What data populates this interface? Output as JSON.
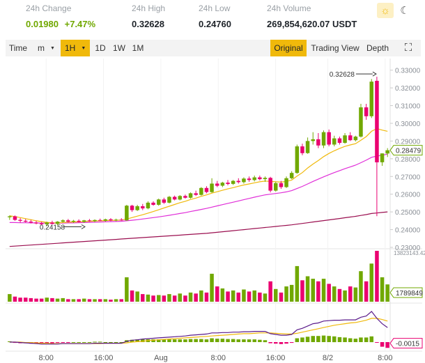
{
  "stats": {
    "change": {
      "label": "24h Change",
      "value": "0.01980",
      "percent": "+7.47%"
    },
    "high": {
      "label": "24h High",
      "value": "0.32628"
    },
    "low": {
      "label": "24h Low",
      "value": "0.24760"
    },
    "volume": {
      "label": "24h Volume",
      "value": "269,854,620.07 USDT"
    }
  },
  "theme_icons": [
    "sun-icon",
    "moon-icon"
  ],
  "toolbar": {
    "time": "Time",
    "minute": "m",
    "hour": "1H",
    "day": "1D",
    "week": "1W",
    "month": "1M",
    "original": "Original",
    "tradingview": "Trading View",
    "depth": "Depth",
    "fullscreen_icon": "fullscreen-icon"
  },
  "colors": {
    "up": "#70a800",
    "down": "#ea0070",
    "accent": "#f0b90b",
    "ma1": "#f0b90b",
    "ma2": "#e02ed8",
    "ma3": "#9a0e4f"
  },
  "chart_data": {
    "type": "candlestick",
    "x_ticks": [
      "8:00",
      "16:00",
      "Aug",
      "8:00",
      "16:00",
      "8/2",
      "8:00"
    ],
    "y_ticks": [
      "0.33000",
      "0.32000",
      "0.31000",
      "0.30000",
      "0.29000",
      "0.28000",
      "0.27000",
      "0.26000",
      "0.25000",
      "0.24000",
      "0.23000"
    ],
    "ylim": [
      0.23,
      0.335
    ],
    "candles": [
      {
        "o": 0.247,
        "h": 0.248,
        "l": 0.2455,
        "c": 0.2475
      },
      {
        "o": 0.2475,
        "h": 0.248,
        "l": 0.245,
        "c": 0.2455
      },
      {
        "o": 0.2455,
        "h": 0.2465,
        "l": 0.244,
        "c": 0.245
      },
      {
        "o": 0.245,
        "h": 0.246,
        "l": 0.244,
        "c": 0.2445
      },
      {
        "o": 0.2445,
        "h": 0.2455,
        "l": 0.2435,
        "c": 0.244
      },
      {
        "o": 0.244,
        "h": 0.245,
        "l": 0.243,
        "c": 0.2435
      },
      {
        "o": 0.2435,
        "h": 0.2445,
        "l": 0.2425,
        "c": 0.243
      },
      {
        "o": 0.243,
        "h": 0.2445,
        "l": 0.242,
        "c": 0.244
      },
      {
        "o": 0.244,
        "h": 0.245,
        "l": 0.243,
        "c": 0.2432
      },
      {
        "o": 0.2432,
        "h": 0.2448,
        "l": 0.2425,
        "c": 0.2445
      },
      {
        "o": 0.2445,
        "h": 0.2458,
        "l": 0.244,
        "c": 0.2452
      },
      {
        "o": 0.2452,
        "h": 0.246,
        "l": 0.244,
        "c": 0.2445
      },
      {
        "o": 0.2445,
        "h": 0.2455,
        "l": 0.2438,
        "c": 0.245
      },
      {
        "o": 0.245,
        "h": 0.2458,
        "l": 0.244,
        "c": 0.2444
      },
      {
        "o": 0.2444,
        "h": 0.2455,
        "l": 0.2438,
        "c": 0.2452
      },
      {
        "o": 0.2452,
        "h": 0.246,
        "l": 0.2445,
        "c": 0.2448
      },
      {
        "o": 0.2448,
        "h": 0.2458,
        "l": 0.2442,
        "c": 0.2454
      },
      {
        "o": 0.2454,
        "h": 0.2462,
        "l": 0.2448,
        "c": 0.245
      },
      {
        "o": 0.245,
        "h": 0.2462,
        "l": 0.2445,
        "c": 0.2458
      },
      {
        "o": 0.2458,
        "h": 0.2465,
        "l": 0.2448,
        "c": 0.2452
      },
      {
        "o": 0.2452,
        "h": 0.2462,
        "l": 0.2447,
        "c": 0.2456
      },
      {
        "o": 0.2456,
        "h": 0.2465,
        "l": 0.245,
        "c": 0.2452
      },
      {
        "o": 0.2452,
        "h": 0.254,
        "l": 0.245,
        "c": 0.2535
      },
      {
        "o": 0.2535,
        "h": 0.254,
        "l": 0.25,
        "c": 0.251
      },
      {
        "o": 0.251,
        "h": 0.254,
        "l": 0.2505,
        "c": 0.2532
      },
      {
        "o": 0.2532,
        "h": 0.2545,
        "l": 0.251,
        "c": 0.252
      },
      {
        "o": 0.252,
        "h": 0.256,
        "l": 0.2515,
        "c": 0.2552
      },
      {
        "o": 0.2552,
        "h": 0.256,
        "l": 0.2535,
        "c": 0.254
      },
      {
        "o": 0.254,
        "h": 0.2575,
        "l": 0.2535,
        "c": 0.257
      },
      {
        "o": 0.257,
        "h": 0.258,
        "l": 0.2545,
        "c": 0.2552
      },
      {
        "o": 0.2552,
        "h": 0.259,
        "l": 0.2548,
        "c": 0.2585
      },
      {
        "o": 0.2585,
        "h": 0.2592,
        "l": 0.2565,
        "c": 0.257
      },
      {
        "o": 0.257,
        "h": 0.2595,
        "l": 0.2565,
        "c": 0.259
      },
      {
        "o": 0.259,
        "h": 0.2598,
        "l": 0.2575,
        "c": 0.258
      },
      {
        "o": 0.258,
        "h": 0.261,
        "l": 0.2575,
        "c": 0.2605
      },
      {
        "o": 0.2605,
        "h": 0.262,
        "l": 0.259,
        "c": 0.2596
      },
      {
        "o": 0.2596,
        "h": 0.264,
        "l": 0.2592,
        "c": 0.2635
      },
      {
        "o": 0.2635,
        "h": 0.2645,
        "l": 0.2605,
        "c": 0.2612
      },
      {
        "o": 0.2612,
        "h": 0.269,
        "l": 0.2608,
        "c": 0.266
      },
      {
        "o": 0.266,
        "h": 0.2675,
        "l": 0.264,
        "c": 0.2648
      },
      {
        "o": 0.2648,
        "h": 0.267,
        "l": 0.264,
        "c": 0.2665
      },
      {
        "o": 0.2665,
        "h": 0.268,
        "l": 0.265,
        "c": 0.2658
      },
      {
        "o": 0.2658,
        "h": 0.268,
        "l": 0.2652,
        "c": 0.2675
      },
      {
        "o": 0.2675,
        "h": 0.269,
        "l": 0.266,
        "c": 0.2668
      },
      {
        "o": 0.2668,
        "h": 0.2695,
        "l": 0.266,
        "c": 0.2688
      },
      {
        "o": 0.2688,
        "h": 0.27,
        "l": 0.267,
        "c": 0.268
      },
      {
        "o": 0.268,
        "h": 0.2705,
        "l": 0.2672,
        "c": 0.2695
      },
      {
        "o": 0.2695,
        "h": 0.2705,
        "l": 0.2678,
        "c": 0.2685
      },
      {
        "o": 0.2685,
        "h": 0.27,
        "l": 0.267,
        "c": 0.2692
      },
      {
        "o": 0.2692,
        "h": 0.2698,
        "l": 0.261,
        "c": 0.262
      },
      {
        "o": 0.262,
        "h": 0.267,
        "l": 0.2615,
        "c": 0.2662
      },
      {
        "o": 0.2662,
        "h": 0.2675,
        "l": 0.263,
        "c": 0.264
      },
      {
        "o": 0.264,
        "h": 0.27,
        "l": 0.2635,
        "c": 0.269
      },
      {
        "o": 0.269,
        "h": 0.273,
        "l": 0.2685,
        "c": 0.272
      },
      {
        "o": 0.272,
        "h": 0.288,
        "l": 0.2715,
        "c": 0.287
      },
      {
        "o": 0.287,
        "h": 0.2885,
        "l": 0.282,
        "c": 0.2832
      },
      {
        "o": 0.2832,
        "h": 0.292,
        "l": 0.2828,
        "c": 0.29
      },
      {
        "o": 0.29,
        "h": 0.295,
        "l": 0.288,
        "c": 0.291
      },
      {
        "o": 0.291,
        "h": 0.2945,
        "l": 0.286,
        "c": 0.2875
      },
      {
        "o": 0.2875,
        "h": 0.296,
        "l": 0.286,
        "c": 0.295
      },
      {
        "o": 0.295,
        "h": 0.2965,
        "l": 0.287,
        "c": 0.288
      },
      {
        "o": 0.288,
        "h": 0.293,
        "l": 0.287,
        "c": 0.2915
      },
      {
        "o": 0.2915,
        "h": 0.2925,
        "l": 0.288,
        "c": 0.289
      },
      {
        "o": 0.289,
        "h": 0.2945,
        "l": 0.2885,
        "c": 0.2932
      },
      {
        "o": 0.2932,
        "h": 0.295,
        "l": 0.29,
        "c": 0.2905
      },
      {
        "o": 0.2905,
        "h": 0.293,
        "l": 0.2898,
        "c": 0.2925
      },
      {
        "o": 0.2925,
        "h": 0.311,
        "l": 0.292,
        "c": 0.309
      },
      {
        "o": 0.309,
        "h": 0.311,
        "l": 0.302,
        "c": 0.304
      },
      {
        "o": 0.304,
        "h": 0.325,
        "l": 0.303,
        "c": 0.3235
      },
      {
        "o": 0.324,
        "h": 0.3263,
        "l": 0.2476,
        "c": 0.278
      },
      {
        "o": 0.278,
        "h": 0.283,
        "l": 0.276,
        "c": 0.283
      },
      {
        "o": 0.283,
        "h": 0.286,
        "l": 0.281,
        "c": 0.2848
      }
    ],
    "ma_fast": [
      0.2478,
      0.2474,
      0.2468,
      0.2462,
      0.2456,
      0.245,
      0.2445,
      0.2441,
      0.2439,
      0.2438,
      0.244,
      0.2442,
      0.2443,
      0.2444,
      0.2446,
      0.2447,
      0.2449,
      0.245,
      0.2451,
      0.2452,
      0.2453,
      0.2454,
      0.246,
      0.2468,
      0.2476,
      0.2484,
      0.2493,
      0.2502,
      0.2512,
      0.2522,
      0.2532,
      0.2542,
      0.2552,
      0.256,
      0.257,
      0.2578,
      0.2588,
      0.2596,
      0.2606,
      0.2614,
      0.2622,
      0.263,
      0.2637,
      0.2645,
      0.2652,
      0.2658,
      0.2664,
      0.267,
      0.2674,
      0.2672,
      0.267,
      0.2668,
      0.2672,
      0.268,
      0.2702,
      0.2722,
      0.2748,
      0.277,
      0.279,
      0.2812,
      0.283,
      0.2845,
      0.2858,
      0.287,
      0.2878,
      0.2885,
      0.2905,
      0.2925,
      0.2955,
      0.297,
      0.2962,
      0.2955
    ],
    "ma_mid": [
      0.244,
      0.244,
      0.2439,
      0.2439,
      0.2438,
      0.2438,
      0.2437,
      0.2437,
      0.2437,
      0.2437,
      0.2437,
      0.2438,
      0.2438,
      0.2439,
      0.244,
      0.2441,
      0.2442,
      0.2443,
      0.2444,
      0.2445,
      0.2446,
      0.2447,
      0.245,
      0.2453,
      0.2456,
      0.246,
      0.2464,
      0.2468,
      0.2472,
      0.2476,
      0.2481,
      0.2486,
      0.2491,
      0.2496,
      0.2502,
      0.2508,
      0.2514,
      0.252,
      0.2527,
      0.2534,
      0.2541,
      0.2548,
      0.2555,
      0.2562,
      0.2569,
      0.2576,
      0.2583,
      0.259,
      0.2596,
      0.26,
      0.2604,
      0.2608,
      0.2613,
      0.262,
      0.2632,
      0.2644,
      0.2658,
      0.2672,
      0.2685,
      0.2698,
      0.271,
      0.2722,
      0.2733,
      0.2744,
      0.2754,
      0.2764,
      0.2778,
      0.2792,
      0.2808,
      0.2815,
      0.282,
      0.2826
    ],
    "ma_slow": [
      0.2305,
      0.2307,
      0.2309,
      0.2311,
      0.2313,
      0.2315,
      0.2317,
      0.2319,
      0.2321,
      0.2323,
      0.2325,
      0.2327,
      0.2329,
      0.2331,
      0.2333,
      0.2335,
      0.2337,
      0.2339,
      0.2341,
      0.2343,
      0.2345,
      0.2347,
      0.2349,
      0.2351,
      0.2353,
      0.2355,
      0.2357,
      0.2359,
      0.2361,
      0.2363,
      0.2365,
      0.2367,
      0.2369,
      0.2371,
      0.2373,
      0.2375,
      0.2377,
      0.2379,
      0.2382,
      0.2385,
      0.2388,
      0.2391,
      0.2394,
      0.2397,
      0.24,
      0.2403,
      0.2406,
      0.2409,
      0.2412,
      0.2415,
      0.2418,
      0.2421,
      0.2424,
      0.2427,
      0.2431,
      0.2435,
      0.2439,
      0.2443,
      0.2447,
      0.2451,
      0.2455,
      0.2459,
      0.2463,
      0.2467,
      0.2471,
      0.2475,
      0.248,
      0.2485,
      0.2491,
      0.2494,
      0.2497,
      0.25
    ],
    "volume": [
      0.15,
      0.1,
      0.08,
      0.08,
      0.07,
      0.06,
      0.06,
      0.08,
      0.07,
      0.06,
      0.07,
      0.05,
      0.05,
      0.05,
      0.06,
      0.05,
      0.05,
      0.05,
      0.05,
      0.04,
      0.05,
      0.05,
      0.48,
      0.22,
      0.2,
      0.15,
      0.14,
      0.12,
      0.13,
      0.12,
      0.15,
      0.12,
      0.16,
      0.12,
      0.18,
      0.16,
      0.22,
      0.18,
      0.55,
      0.3,
      0.26,
      0.2,
      0.22,
      0.18,
      0.24,
      0.2,
      0.22,
      0.18,
      0.16,
      0.4,
      0.25,
      0.18,
      0.3,
      0.33,
      0.7,
      0.42,
      0.5,
      0.45,
      0.4,
      0.45,
      0.35,
      0.3,
      0.25,
      0.22,
      0.3,
      0.28,
      0.6,
      0.4,
      0.75,
      1.0,
      0.48,
      0.34
    ],
    "macd_dif": [
      0.0,
      0.0,
      -0.01,
      -0.02,
      -0.03,
      -0.04,
      -0.05,
      -0.05,
      -0.05,
      -0.05,
      -0.04,
      -0.04,
      -0.04,
      -0.04,
      -0.04,
      -0.04,
      -0.03,
      -0.03,
      -0.03,
      -0.03,
      -0.03,
      -0.03,
      0.02,
      0.05,
      0.06,
      0.08,
      0.09,
      0.1,
      0.11,
      0.12,
      0.13,
      0.14,
      0.15,
      0.16,
      0.18,
      0.19,
      0.2,
      0.21,
      0.24,
      0.24,
      0.25,
      0.25,
      0.26,
      0.26,
      0.27,
      0.27,
      0.28,
      0.28,
      0.28,
      0.22,
      0.2,
      0.18,
      0.18,
      0.2,
      0.32,
      0.36,
      0.42,
      0.48,
      0.5,
      0.55,
      0.56,
      0.57,
      0.57,
      0.58,
      0.58,
      0.58,
      0.65,
      0.68,
      0.8,
      0.62,
      0.48,
      0.38
    ],
    "macd_dea": [
      0.0,
      0.0,
      0.0,
      -0.01,
      -0.01,
      -0.02,
      -0.03,
      -0.03,
      -0.04,
      -0.04,
      -0.04,
      -0.04,
      -0.04,
      -0.04,
      -0.04,
      -0.04,
      -0.04,
      -0.04,
      -0.03,
      -0.03,
      -0.03,
      -0.03,
      -0.02,
      0.0,
      0.01,
      0.02,
      0.04,
      0.05,
      0.06,
      0.07,
      0.08,
      0.09,
      0.1,
      0.11,
      0.12,
      0.13,
      0.14,
      0.15,
      0.16,
      0.17,
      0.18,
      0.19,
      0.2,
      0.21,
      0.22,
      0.22,
      0.23,
      0.24,
      0.24,
      0.24,
      0.23,
      0.22,
      0.21,
      0.21,
      0.23,
      0.26,
      0.29,
      0.32,
      0.35,
      0.38,
      0.41,
      0.44,
      0.46,
      0.48,
      0.5,
      0.51,
      0.54,
      0.57,
      0.62,
      0.62,
      0.59,
      0.55
    ],
    "macd_hist": [
      0.02,
      -0.02,
      -0.03,
      -0.03,
      -0.04,
      -0.04,
      -0.04,
      -0.03,
      -0.03,
      -0.02,
      -0.01,
      -0.01,
      0.0,
      0.0,
      0.0,
      0.0,
      0.01,
      0.01,
      0.0,
      0.0,
      0.0,
      0.0,
      0.05,
      0.06,
      0.07,
      0.07,
      0.07,
      0.07,
      0.07,
      0.07,
      0.07,
      0.07,
      0.07,
      0.07,
      0.08,
      0.08,
      0.08,
      0.07,
      0.1,
      0.09,
      0.09,
      0.08,
      0.08,
      0.07,
      0.07,
      0.07,
      0.07,
      0.06,
      0.05,
      -0.03,
      -0.04,
      -0.05,
      -0.04,
      -0.02,
      0.1,
      0.12,
      0.14,
      0.16,
      0.16,
      0.17,
      0.16,
      0.15,
      0.13,
      0.12,
      0.1,
      0.09,
      0.12,
      0.12,
      0.15,
      -0.01,
      -0.12,
      -0.15
    ],
    "annotations": {
      "high_label": "0.32628",
      "low_label": "0.24158",
      "price_tag": "0.28479",
      "volume_max_label": "13823143.42",
      "volume_tag": "1789849",
      "macd_tag": "-0.0015"
    }
  }
}
